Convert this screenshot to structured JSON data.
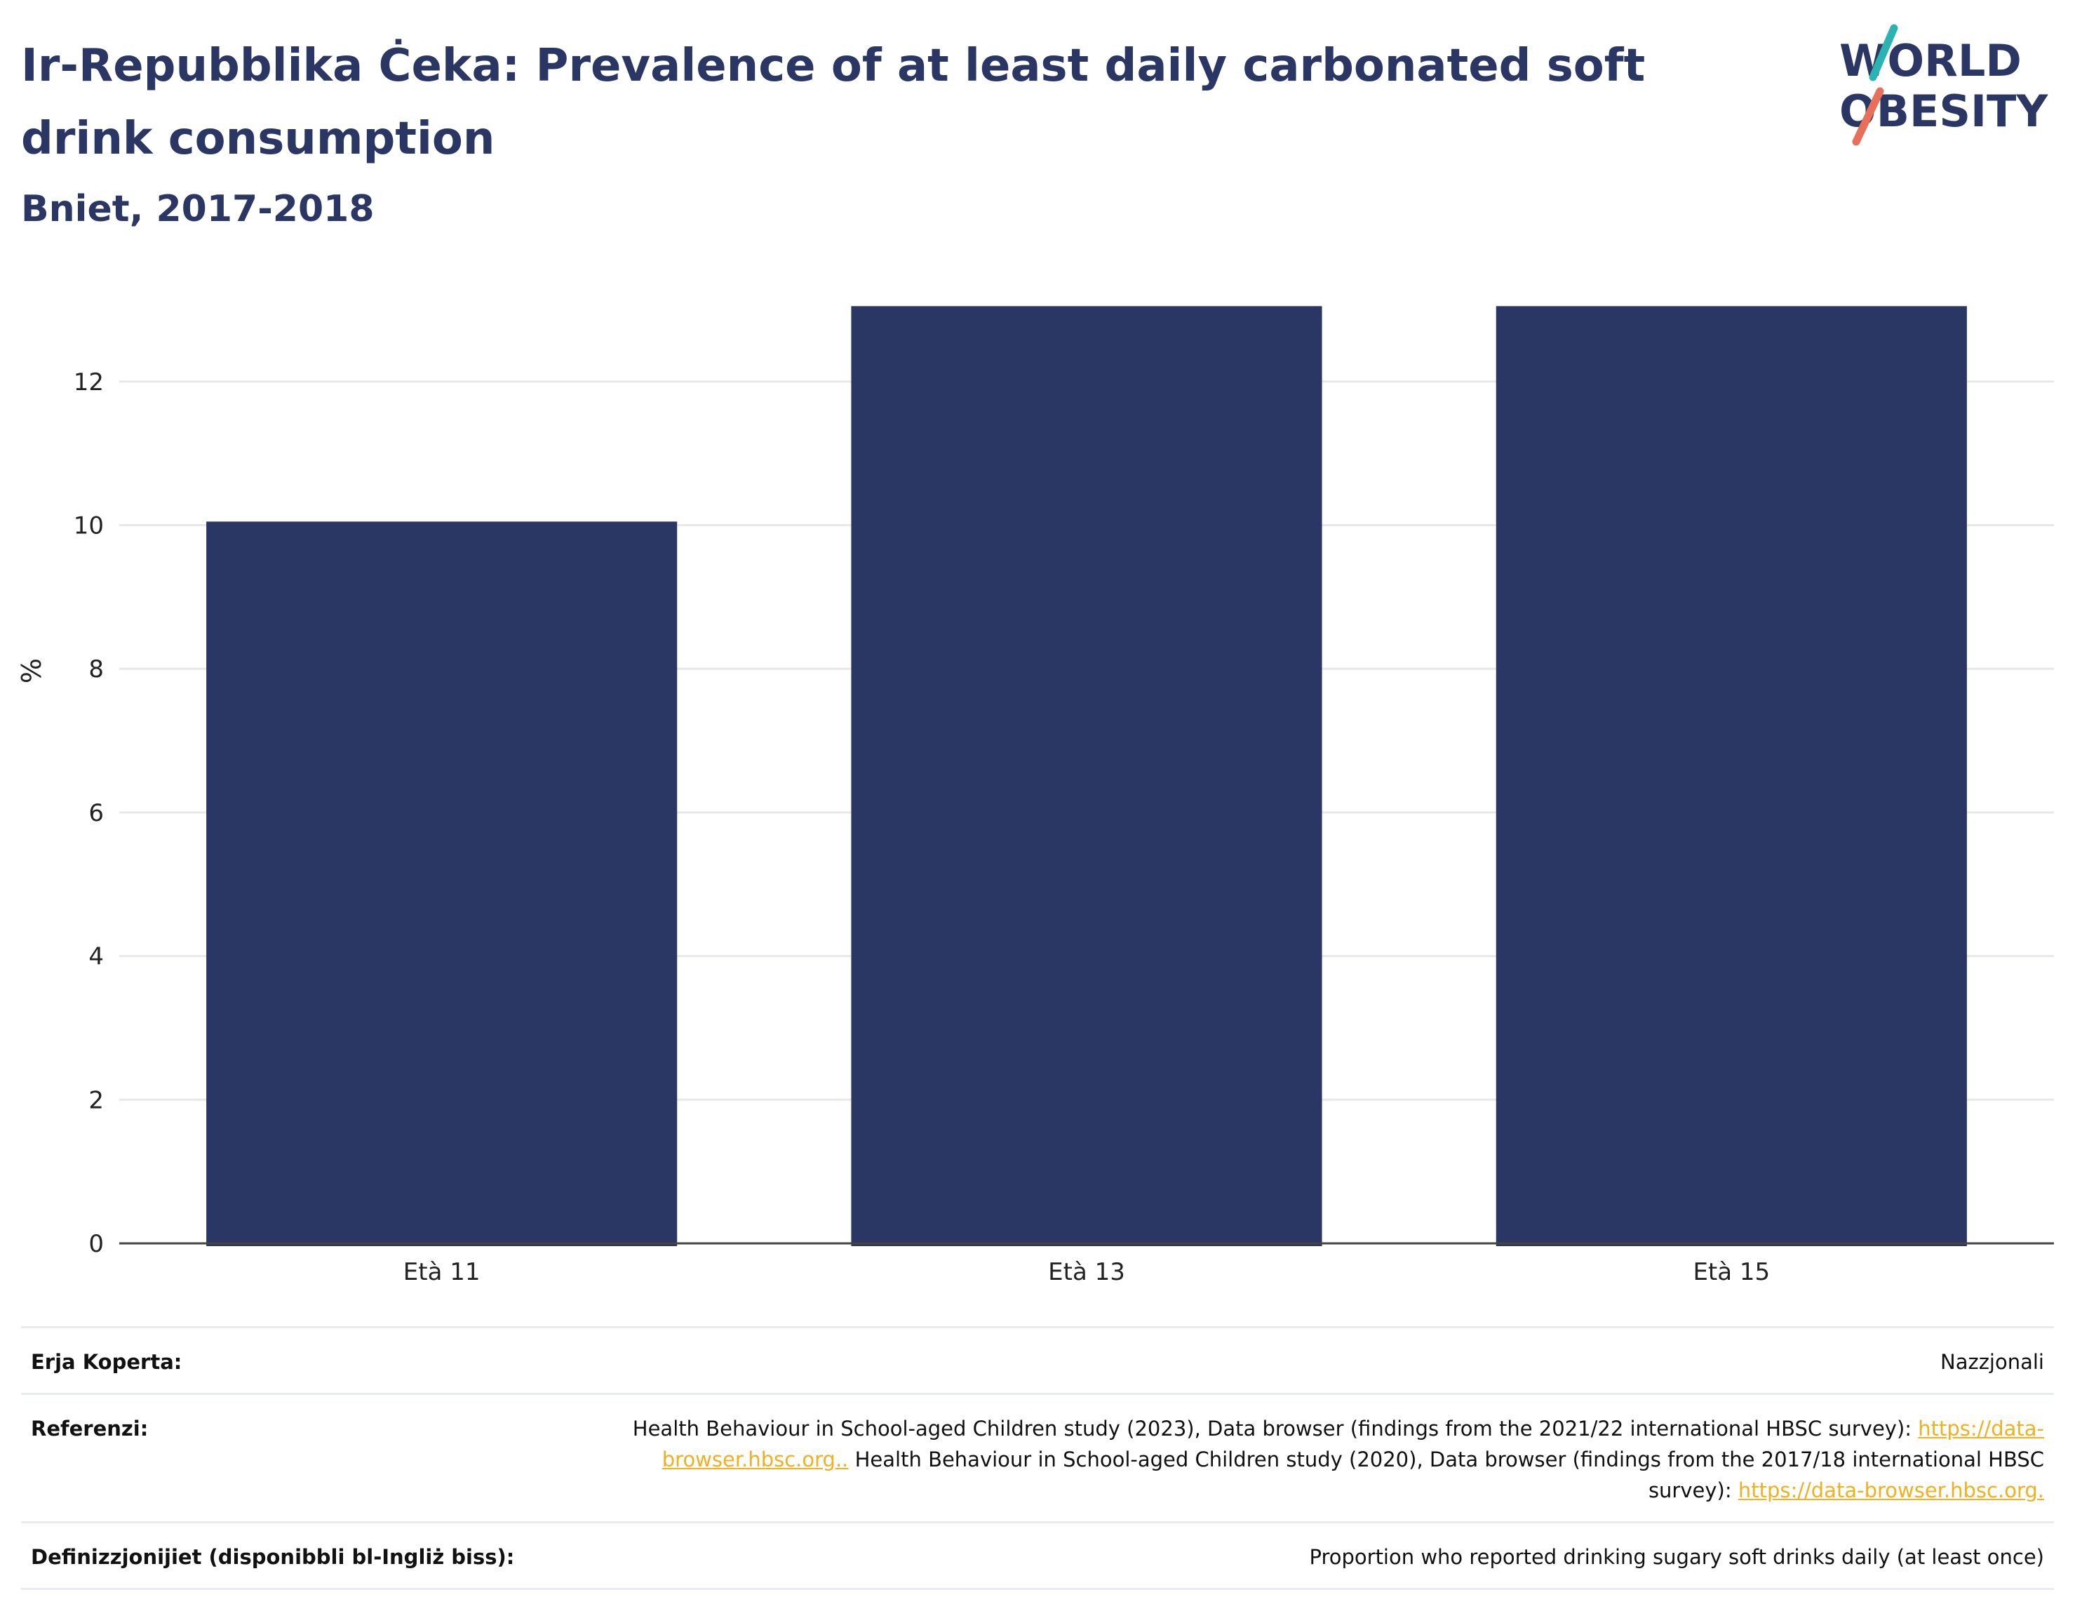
{
  "header": {
    "title": "Ir-Repubblika Ċeka: Prevalence of at least daily carbonated soft drink consumption",
    "subtitle": "Bniet, 2017-2018"
  },
  "logo": {
    "line1": "WORLD",
    "line2": "OBESITY",
    "text_color": "#2a3663",
    "accent_teal": "#2ab3b1",
    "accent_coral": "#e8705a"
  },
  "chart_data": {
    "type": "bar",
    "categories": [
      "Età 11",
      "Età 13",
      "Età 15"
    ],
    "values": [
      10.05,
      13.05,
      13.05
    ],
    "ylabel": "%",
    "ylim": [
      0,
      13.6
    ],
    "yticks": [
      0,
      2,
      4,
      6,
      8,
      10,
      12
    ],
    "bar_color": "#2a3663",
    "grid": true
  },
  "footer": {
    "coverage_label": "Erja Koperta:",
    "coverage_value": "Nazzjonali",
    "references_label": "Referenzi:",
    "ref_text1": "Health Behaviour in School-aged Children study (2023), Data browser (findings from the 2021/22 international HBSC survey): ",
    "ref_link1": "https://data-browser.hbsc.org..",
    "ref_text2": " Health Behaviour in School-aged Children study (2020), Data browser (findings from the 2017/18 international HBSC survey): ",
    "ref_link2": "https://data-browser.hbsc.org.",
    "definitions_label": "Definizzjonijiet (disponibbli bl-Ingliż biss):",
    "definitions_value": "Proportion who reported drinking sugary soft drinks daily (at least once)",
    "link_color": "#f0b020"
  }
}
